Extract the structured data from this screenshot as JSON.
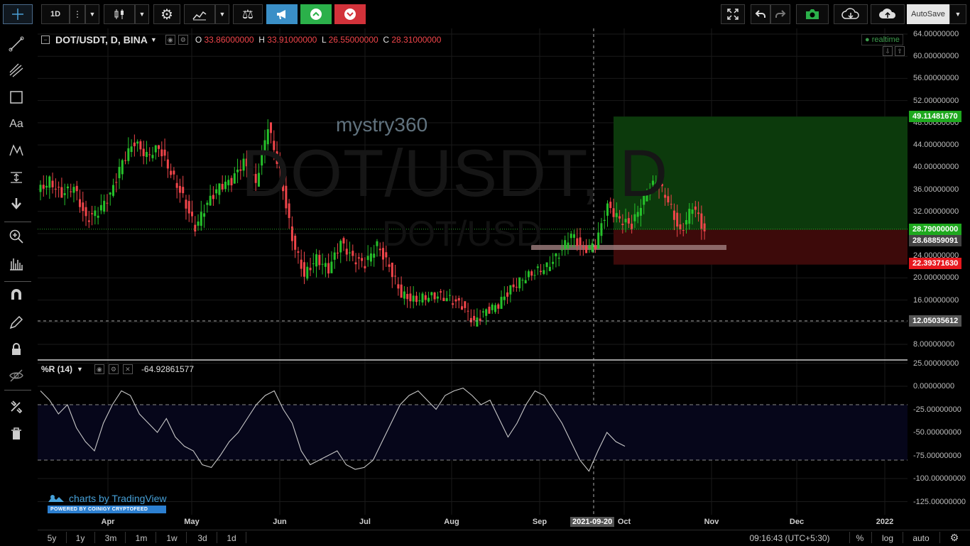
{
  "toolbar": {
    "interval": "1D",
    "autosave": "AutoSave"
  },
  "symbol": {
    "title": "DOT/USDT, D, BINA",
    "open_label": "O",
    "open": "33.86000000",
    "high_label": "H",
    "high": "33.91000000",
    "low_label": "L",
    "low": "26.55000000",
    "close_label": "C",
    "close": "28.31000000",
    "watermark": "DOT/USDT, D",
    "watermark_small": "DOT/USD",
    "author": "mystry360",
    "realtime": "realtime"
  },
  "price_axis": {
    "ticks": [
      "64.00000000",
      "60.00000000",
      "56.00000000",
      "52.00000000",
      "48.00000000",
      "44.00000000",
      "40.00000000",
      "36.00000000",
      "32.00000000",
      "28.00000000",
      "24.00000000",
      "20.00000000",
      "16.00000000",
      "12.00000000",
      "8.00000000"
    ],
    "labels": {
      "target": "49.11481670",
      "current": "28.79000000",
      "entry": "28.68859091",
      "stop": "22.39371630",
      "crosshair": "12.05035612"
    }
  },
  "indicator": {
    "name": "%R (14)",
    "value": "-64.92861577",
    "ticks": [
      "25.00000000",
      "0.00000000",
      "-25.00000000",
      "-50.00000000",
      "-75.00000000",
      "-100.00000000",
      "-125.00000000"
    ]
  },
  "time_axis": {
    "months": [
      "Apr",
      "May",
      "Jun",
      "Jul",
      "Aug",
      "Sep",
      "Oct",
      "Nov",
      "Dec",
      "2022"
    ],
    "crosshair_date": "2021-09-20"
  },
  "branding": {
    "charts_by": "charts by TradingView",
    "powered": "POWERED BY COINIGY CRYPTOFEED"
  },
  "bottom": {
    "ranges": [
      "5y",
      "1y",
      "3m",
      "1m",
      "1w",
      "3d",
      "1d"
    ],
    "clock": "09:16:43 (UTC+5:30)",
    "percent": "%",
    "log": "log",
    "auto": "auto"
  },
  "colors": {
    "up": "#26c22b",
    "down": "#f0454a",
    "target_bg": "#0c3a0c",
    "stop_bg": "#3d0a0a",
    "label_green": "#1ea81e",
    "label_red": "#e8181e",
    "entry_label": "#444444",
    "crosshair_label": "#555555",
    "accent": "#3a8fc7"
  },
  "chart_data": {
    "type": "candlestick",
    "symbol": "DOT/USDT",
    "timeframe": "D",
    "ylim": [
      6,
      66
    ],
    "ohlc_approx_every_4_days": [
      [
        35.5,
        38.5,
        34.0,
        37.5
      ],
      [
        37.5,
        39.0,
        34.5,
        35.0
      ],
      [
        35.0,
        37.0,
        33.0,
        36.5
      ],
      [
        36.5,
        37.5,
        29.0,
        30.5
      ],
      [
        30.5,
        33.0,
        29.0,
        32.0
      ],
      [
        32.0,
        35.5,
        31.5,
        35.0
      ],
      [
        35.0,
        41.5,
        34.5,
        41.0
      ],
      [
        41.0,
        46.5,
        40.5,
        44.5
      ],
      [
        44.5,
        45.0,
        40.5,
        42.0
      ],
      [
        42.0,
        44.0,
        41.0,
        43.5
      ],
      [
        43.5,
        48.0,
        38.0,
        39.0
      ],
      [
        39.0,
        40.0,
        33.0,
        34.5
      ],
      [
        34.5,
        35.0,
        27.5,
        29.0
      ],
      [
        29.0,
        34.0,
        28.5,
        33.5
      ],
      [
        33.5,
        37.0,
        33.0,
        36.5
      ],
      [
        36.5,
        38.5,
        35.5,
        37.5
      ],
      [
        37.5,
        42.5,
        37.0,
        41.0
      ],
      [
        41.0,
        43.0,
        35.5,
        37.0
      ],
      [
        37.0,
        49.5,
        36.5,
        47.5
      ],
      [
        47.5,
        48.0,
        37.0,
        39.0
      ],
      [
        39.0,
        41.5,
        24.5,
        27.0
      ],
      [
        27.0,
        28.0,
        15.0,
        20.5
      ],
      [
        20.5,
        25.5,
        19.5,
        23.5
      ],
      [
        23.5,
        25.0,
        20.0,
        21.5
      ],
      [
        21.5,
        27.0,
        21.0,
        26.5
      ],
      [
        26.5,
        27.5,
        23.0,
        23.5
      ],
      [
        23.5,
        24.5,
        21.0,
        22.5
      ],
      [
        22.5,
        27.0,
        22.0,
        26.0
      ],
      [
        26.0,
        26.5,
        21.0,
        22.0
      ],
      [
        22.0,
        22.5,
        16.5,
        17.0
      ],
      [
        17.0,
        18.5,
        14.5,
        16.0
      ],
      [
        16.0,
        17.5,
        15.0,
        16.5
      ],
      [
        16.5,
        17.5,
        15.5,
        16.8
      ],
      [
        16.8,
        18.0,
        15.8,
        16.2
      ],
      [
        16.2,
        16.8,
        14.5,
        15.0
      ],
      [
        15.0,
        15.5,
        11.2,
        12.0
      ],
      [
        12.0,
        14.5,
        11.5,
        14.0
      ],
      [
        14.0,
        15.5,
        13.5,
        15.2
      ],
      [
        15.2,
        18.5,
        15.0,
        18.0
      ],
      [
        18.0,
        20.0,
        17.5,
        19.8
      ],
      [
        19.8,
        21.5,
        19.5,
        21.0
      ],
      [
        21.0,
        22.5,
        20.5,
        22.0
      ],
      [
        22.0,
        24.5,
        21.5,
        24.2
      ],
      [
        24.2,
        28.5,
        24.0,
        28.0
      ],
      [
        28.0,
        29.0,
        24.0,
        25.0
      ],
      [
        25.0,
        27.0,
        24.5,
        26.0
      ],
      [
        26.0,
        34.0,
        25.5,
        33.0
      ],
      [
        33.0,
        34.5,
        30.0,
        30.5
      ],
      [
        30.5,
        32.5,
        28.0,
        29.5
      ],
      [
        29.5,
        35.0,
        29.0,
        34.5
      ],
      [
        34.5,
        38.5,
        34.0,
        37.5
      ],
      [
        37.5,
        38.0,
        33.0,
        34.0
      ],
      [
        34.0,
        35.0,
        27.0,
        28.0
      ],
      [
        28.0,
        33.5,
        27.5,
        33.0
      ],
      [
        33.5,
        33.9,
        26.5,
        28.3
      ]
    ],
    "long_position": {
      "target": 49.1148167,
      "entry": 28.68859091,
      "stop": 22.3937163
    },
    "williams_r_14": {
      "last": -64.93,
      "levels": [
        -20,
        -80
      ],
      "ylim": [
        -130,
        25
      ],
      "values": [
        -5,
        -15,
        -30,
        -20,
        -45,
        -60,
        -70,
        -40,
        -20,
        -5,
        -10,
        -30,
        -40,
        -50,
        -35,
        -55,
        -65,
        -70,
        -85,
        -88,
        -75,
        -60,
        -50,
        -35,
        -20,
        -10,
        -5,
        -25,
        -40,
        -70,
        -85,
        -80,
        -75,
        -70,
        -85,
        -90,
        -88,
        -80,
        -60,
        -40,
        -20,
        -10,
        -5,
        -15,
        -25,
        -10,
        -5,
        -2,
        -10,
        -20,
        -15,
        -35,
        -55,
        -40,
        -20,
        -5,
        -10,
        -25,
        -40,
        -60,
        -80,
        -92,
        -70,
        -50,
        -60,
        -65
      ]
    }
  }
}
